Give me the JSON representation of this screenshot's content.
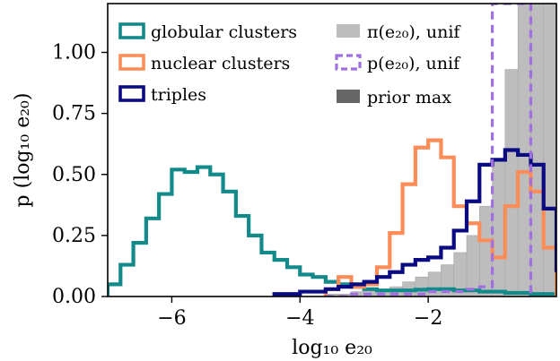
{
  "chart_data": {
    "type": "histogram",
    "xlabel": "log₁₀ e₂₀",
    "ylabel": "p (log₁₀ e₂₀)",
    "xlim": [
      -7.0,
      0.0
    ],
    "ylim": [
      0.0,
      1.2
    ],
    "x_ticks": [
      {
        "value": -6,
        "label": "−6"
      },
      {
        "value": -4,
        "label": "−4"
      },
      {
        "value": -2,
        "label": "−2"
      }
    ],
    "y_ticks": [
      {
        "value": 0.0,
        "label": "0.00"
      },
      {
        "value": 0.25,
        "label": "0.25"
      },
      {
        "value": 0.5,
        "label": "0.50"
      },
      {
        "value": 0.75,
        "label": "0.75"
      },
      {
        "value": 1.0,
        "label": "1.00"
      }
    ],
    "grid": false,
    "legend_placement": "top",
    "prior_max": {
      "name": "prior max",
      "x_start": -0.48,
      "x_end": 0.0,
      "color": "#666666",
      "hatch": "crosshatch"
    },
    "series": [
      {
        "name": "globular clusters",
        "kind": "step",
        "color": "#138a8a",
        "bin_edges": [
          -7.0,
          -6.8,
          -6.6,
          -6.4,
          -6.2,
          -6.0,
          -5.8,
          -5.6,
          -5.4,
          -5.2,
          -5.0,
          -4.8,
          -4.6,
          -4.4,
          -4.2,
          -4.0,
          -3.8,
          -3.6,
          -3.4,
          -3.2,
          -3.0,
          -2.8,
          -2.6,
          -2.4,
          -2.2,
          -2.0,
          -1.8,
          -1.6,
          -1.4,
          -1.2,
          -1.0,
          -0.8,
          -0.6,
          -0.4,
          -0.2,
          0.0
        ],
        "values": [
          0.05,
          0.13,
          0.22,
          0.32,
          0.42,
          0.52,
          0.51,
          0.53,
          0.5,
          0.43,
          0.33,
          0.25,
          0.18,
          0.15,
          0.12,
          0.09,
          0.08,
          0.06,
          0.05,
          0.04,
          0.03,
          0.025,
          0.025,
          0.025,
          0.028,
          0.03,
          0.03,
          0.025,
          0.025,
          0.02,
          0.02,
          0.015,
          0.015,
          0.01,
          0.01
        ]
      },
      {
        "name": "nuclear clusters",
        "kind": "step",
        "color": "#fc8d59",
        "bin_edges": [
          -3.6,
          -3.4,
          -3.2,
          -3.0,
          -2.8,
          -2.6,
          -2.4,
          -2.2,
          -2.0,
          -1.8,
          -1.6,
          -1.4,
          -1.2,
          -1.0,
          -0.8,
          -0.6,
          -0.4,
          -0.2,
          0.0
        ],
        "values": [
          0.03,
          0.08,
          0.04,
          0.05,
          0.12,
          0.26,
          0.46,
          0.61,
          0.64,
          0.57,
          0.37,
          0.3,
          0.23,
          0.16,
          0.37,
          0.51,
          0.43,
          0.2
        ]
      },
      {
        "name": "triples",
        "kind": "step",
        "color": "#0a0a82",
        "bin_edges": [
          -4.4,
          -4.2,
          -4.0,
          -3.8,
          -3.6,
          -3.4,
          -3.2,
          -3.0,
          -2.8,
          -2.6,
          -2.4,
          -2.2,
          -2.0,
          -1.8,
          -1.6,
          -1.4,
          -1.2,
          -1.0,
          -0.8,
          -0.6,
          -0.4,
          -0.2,
          0.0
        ],
        "values": [
          0.01,
          0.01,
          0.02,
          0.02,
          0.03,
          0.04,
          0.05,
          0.06,
          0.08,
          0.1,
          0.13,
          0.15,
          0.16,
          0.2,
          0.27,
          0.39,
          0.54,
          0.56,
          0.6,
          0.58,
          0.54,
          0.36,
          0.1
        ]
      },
      {
        "name": "π(e₂₀), unif",
        "kind": "bar",
        "color": "#bdbdbd",
        "bin_edges": [
          -3.8,
          -3.6,
          -3.4,
          -3.2,
          -3.0,
          -2.8,
          -2.6,
          -2.4,
          -2.2,
          -2.0,
          -1.8,
          -1.6,
          -1.4,
          -1.2,
          -1.0,
          -0.8,
          -0.6,
          -0.4,
          -0.2,
          0.0
        ],
        "values": [
          0.0,
          0.01,
          0.01,
          0.02,
          0.03,
          0.03,
          0.04,
          0.06,
          0.08,
          0.1,
          0.13,
          0.18,
          0.25,
          0.37,
          0.56,
          0.93,
          1.2,
          1.2,
          1.2
        ]
      },
      {
        "name": "p(e₂₀), unif",
        "kind": "dashed-step",
        "color": "#a070e0",
        "bin_edges": [
          -3.6,
          -3.4,
          -3.2,
          -3.0,
          -2.8,
          -2.6,
          -2.4,
          -2.2,
          -2.0,
          -1.8,
          -1.6,
          -1.4,
          -1.2,
          -1.0,
          -0.8,
          -0.6,
          -0.4
        ],
        "values": [
          0.0,
          0.0,
          0.01,
          0.01,
          0.01,
          0.01,
          0.01,
          0.01,
          0.02,
          0.02,
          0.02,
          0.03,
          0.04,
          1.2,
          1.2,
          1.2
        ]
      }
    ],
    "legend": [
      {
        "label": "globular clusters",
        "kind": "step",
        "color": "#138a8a"
      },
      {
        "label": "nuclear clusters",
        "kind": "step",
        "color": "#fc8d59"
      },
      {
        "label": "triples",
        "kind": "step",
        "color": "#0a0a82"
      },
      {
        "label": "π(e₂₀), unif",
        "kind": "bar",
        "color": "#bdbdbd"
      },
      {
        "label": "p(e₂₀), unif",
        "kind": "dashed-step",
        "color": "#a070e0"
      },
      {
        "label": "prior max",
        "kind": "bar",
        "color": "#666666"
      }
    ]
  }
}
